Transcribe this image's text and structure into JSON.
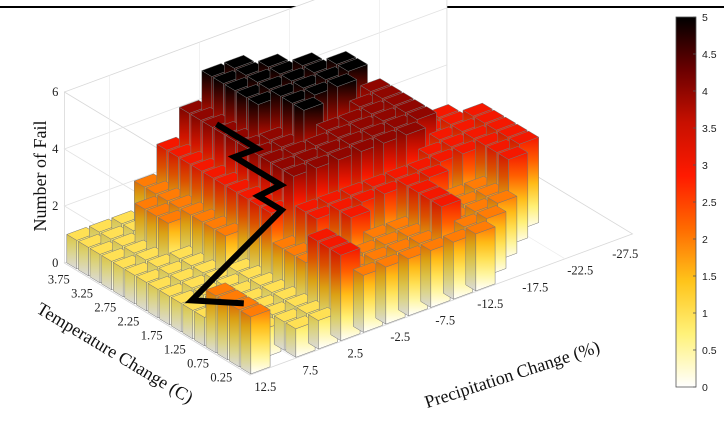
{
  "chart_data": {
    "type": "bar3d",
    "xlabel": "Precipitation Change (%)",
    "ylabel": "Temperature Change (C)",
    "zlabel": "Number of Fail",
    "precipitation_ticks": [
      "12.5",
      "7.5",
      "2.5",
      "-2.5",
      "-7.5",
      "-12.5",
      "-17.5",
      "-22.5",
      "-27.5"
    ],
    "temperature_ticks": [
      "3.75",
      "3.25",
      "2.75",
      "2.25",
      "1.75",
      "1.25",
      "0.75",
      "0.25"
    ],
    "z_ticks": [
      "0",
      "2",
      "4",
      "6"
    ],
    "zlim": [
      0,
      6
    ],
    "colorbar": {
      "ticks": [
        "0",
        "0.5",
        "1",
        "1.5",
        "2",
        "2.5",
        "3",
        "3.5",
        "4",
        "4.5",
        "5"
      ],
      "range": [
        0,
        5
      ],
      "colormap": [
        "#ffffff",
        "#fff27a",
        "#ffc41a",
        "#ff6a00",
        "#ff1a00",
        "#c81000",
        "#6b0000",
        "#000000"
      ]
    },
    "precipitation_values": [
      12.5,
      10,
      7.5,
      5,
      2.5,
      0,
      -2.5,
      -5,
      -7.5,
      -10,
      -12.5,
      -15,
      -17.5,
      -20,
      -22.5,
      -25,
      -27.5
    ],
    "temperature_values": [
      0.25,
      0.5,
      0.75,
      1,
      1.25,
      1.5,
      1.75,
      2,
      2.25,
      2.5,
      2.75,
      3,
      3.25,
      3.5,
      3.75,
      4
    ],
    "counts": [
      [
        2,
        0,
        1,
        1,
        3,
        2,
        2,
        2,
        2,
        2,
        2,
        0,
        0,
        0,
        0,
        0,
        0
      ],
      [
        2,
        1,
        1,
        1,
        3,
        2,
        2,
        2,
        2,
        3,
        2,
        2,
        0,
        0,
        0,
        0,
        0
      ],
      [
        2,
        1,
        1,
        1,
        3,
        2,
        2,
        2,
        2,
        3,
        2,
        2,
        2,
        0,
        0,
        0,
        0
      ],
      [
        2,
        1,
        1,
        1,
        2,
        2,
        3,
        2,
        2,
        3,
        2,
        2,
        2,
        3,
        0,
        0,
        0
      ],
      [
        1,
        1,
        1,
        1,
        2,
        3,
        3,
        3,
        3,
        3,
        3,
        2,
        2,
        3,
        3,
        0,
        0
      ],
      [
        1,
        1,
        1,
        1,
        2,
        3,
        3,
        3,
        3,
        3,
        3,
        3,
        3,
        3,
        3,
        0,
        0
      ],
      [
        1,
        1,
        1,
        1,
        3,
        4,
        4,
        4,
        4,
        4,
        4,
        3,
        3,
        3,
        3,
        0,
        0
      ],
      [
        1,
        1,
        1,
        1,
        3,
        4,
        4,
        4,
        4,
        4,
        4,
        4,
        3,
        3,
        3,
        0,
        0
      ],
      [
        1,
        1,
        1,
        2,
        3,
        4,
        4,
        4,
        4,
        4,
        4,
        4,
        3,
        3,
        3,
        0,
        0
      ],
      [
        1,
        1,
        1,
        2,
        3,
        4,
        4,
        5,
        4,
        4,
        4,
        4,
        3,
        3,
        0,
        0,
        0
      ],
      [
        1,
        1,
        1,
        2,
        3,
        4,
        4,
        5,
        5,
        5,
        4,
        4,
        3,
        0,
        0,
        0,
        0
      ],
      [
        1,
        1,
        2,
        2,
        3,
        4,
        5,
        5,
        5,
        5,
        5,
        4,
        0,
        0,
        0,
        0,
        0
      ],
      [
        1,
        1,
        2,
        2,
        3,
        4,
        5,
        5,
        5,
        5,
        5,
        0,
        0,
        0,
        0,
        0,
        0
      ],
      [
        1,
        1,
        2,
        2,
        3,
        4,
        5,
        5,
        5,
        5,
        0,
        0,
        0,
        0,
        0,
        0,
        0
      ],
      [
        1,
        1,
        1,
        2,
        3,
        4,
        5,
        5,
        5,
        0,
        0,
        0,
        0,
        0,
        0,
        0,
        0
      ],
      [
        1,
        1,
        1,
        2,
        3,
        4,
        5,
        5,
        0,
        0,
        0,
        0,
        0,
        0,
        0,
        0,
        0
      ]
    ],
    "boundary_line": [
      {
        "precipitation": 12.5,
        "temperature": 0.5
      },
      {
        "precipitation": 12.5,
        "temperature": 1.625
      },
      {
        "precipitation": 2.5,
        "temperature": 1.625
      },
      {
        "precipitation": 2.5,
        "temperature": 2.125
      },
      {
        "precipitation": 0,
        "temperature": 2.125
      },
      {
        "precipitation": 0,
        "temperature": 3.125
      },
      {
        "precipitation": -2.5,
        "temperature": 3.125
      },
      {
        "precipitation": -2.5,
        "temperature": 4.0
      }
    ]
  }
}
